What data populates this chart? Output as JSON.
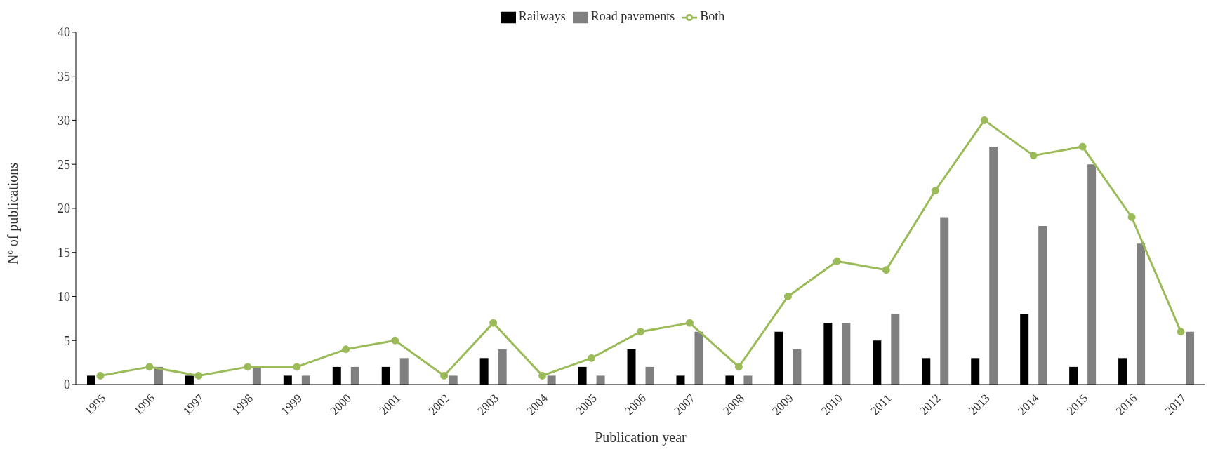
{
  "chart_data": {
    "type": "bar",
    "xlabel": "Publication year",
    "ylabel": "Nº of publications",
    "categories": [
      "1995",
      "1996",
      "1997",
      "1998",
      "1999",
      "2000",
      "2001",
      "2002",
      "2003",
      "2004",
      "2005",
      "2006",
      "2007",
      "2008",
      "2009",
      "2010",
      "2011",
      "2012",
      "2013",
      "2014",
      "2015",
      "2016",
      "2017"
    ],
    "series": [
      {
        "name": "Railways",
        "color": "#000000",
        "values": [
          1,
          0,
          1,
          0,
          1,
          2,
          2,
          0,
          3,
          0,
          2,
          4,
          1,
          1,
          6,
          7,
          5,
          3,
          3,
          8,
          2,
          3,
          0
        ]
      },
      {
        "name": "Road pavements",
        "color": "#808080",
        "values": [
          0,
          2,
          0,
          2,
          1,
          2,
          3,
          1,
          4,
          1,
          1,
          2,
          6,
          1,
          4,
          7,
          8,
          19,
          27,
          18,
          25,
          16,
          6
        ]
      },
      {
        "name": "Both",
        "type": "line",
        "color": "#9bbb59",
        "values": [
          1,
          2,
          1,
          2,
          2,
          4,
          5,
          1,
          7,
          1,
          3,
          6,
          7,
          2,
          10,
          14,
          13,
          22,
          30,
          26,
          27,
          19,
          6
        ]
      }
    ],
    "ylim": [
      0,
      40
    ],
    "yticks": [
      0,
      5,
      10,
      15,
      20,
      25,
      30,
      35,
      40
    ],
    "grid": false,
    "legend": "top",
    "marker": "circle",
    "line_style": "solid"
  }
}
